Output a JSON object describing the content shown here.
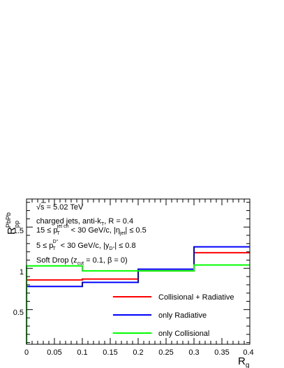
{
  "chart_data": {
    "type": "line",
    "step": true,
    "xlabel": "R_g",
    "ylabel": "R_pp^PbPb",
    "xlim": [
      0,
      0.4
    ],
    "ylim": [
      0.08,
      1.84
    ],
    "grid": false,
    "x_ticks": [
      "0",
      "0.05",
      "0.1",
      "0.15",
      "0.2",
      "0.25",
      "0.3",
      "0.35",
      "0.4"
    ],
    "y_ticks": [
      "0.5",
      "1",
      "1.5"
    ],
    "bin_edges": [
      0,
      0.1,
      0.2,
      0.3,
      0.4
    ],
    "series": [
      {
        "name": "Collisional + Radiative",
        "color": "#ff0000",
        "values": [
          0.86,
          0.87,
          0.97,
          1.19
        ]
      },
      {
        "name": "only Radiative",
        "color": "#0000ff",
        "values": [
          0.78,
          0.83,
          0.99,
          1.26
        ]
      },
      {
        "name": "only Collisional",
        "color": "#00ff00",
        "values": [
          1.03,
          0.97,
          0.97,
          1.04
        ]
      }
    ],
    "legend_position": "bottom-right",
    "annotations": {
      "energy": "√s = 5.02 TeV",
      "jets": "charged jets, anti-k_T, R = 0.4",
      "jet_pt": "15 ≤ p_T^jet ch < 30 GeV/c, |η_jet| ≤ 0.5",
      "d0_pt": "5 ≤ p_T^D0 < 30 GeV/c, |y_D0| ≤ 0.8",
      "softdrop": "Soft Drop (z_cut = 0.1, β = 0)"
    }
  }
}
